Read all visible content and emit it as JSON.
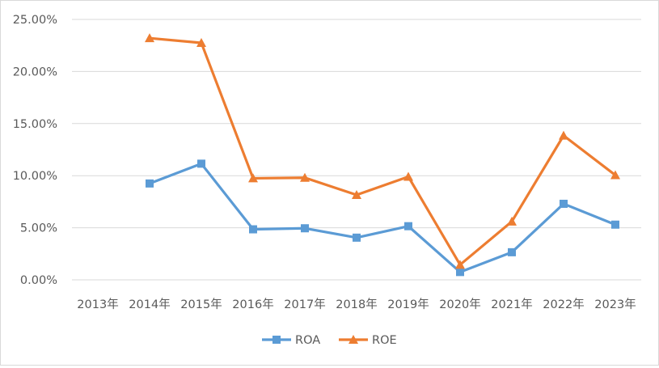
{
  "chart_data": {
    "type": "line",
    "title": "",
    "xlabel": "",
    "ylabel": "",
    "categories": [
      "2013年",
      "2014年",
      "2015年",
      "2016年",
      "2017年",
      "2018年",
      "2019年",
      "2020年",
      "2021年",
      "2022年",
      "2023年"
    ],
    "y_ticks": [
      "0.00%",
      "5.00%",
      "10.00%",
      "15.00%",
      "20.00%",
      "25.00%"
    ],
    "ylim": [
      0,
      25
    ],
    "grid": true,
    "legend_position": "bottom",
    "series": [
      {
        "name": "ROA",
        "color": "#5b9bd5",
        "marker": "square",
        "values": [
          null,
          9.25,
          11.15,
          4.85,
          4.95,
          4.05,
          5.15,
          0.75,
          2.65,
          7.3,
          5.3
        ]
      },
      {
        "name": "ROE",
        "color": "#ed7d31",
        "marker": "triangle",
        "values": [
          null,
          23.2,
          22.75,
          9.75,
          9.8,
          8.15,
          9.9,
          1.45,
          5.6,
          13.85,
          10.05
        ]
      }
    ]
  }
}
